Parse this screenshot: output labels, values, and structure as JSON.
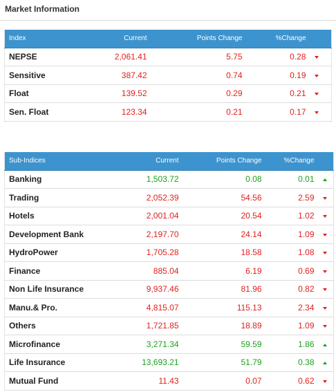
{
  "panel": {
    "title": "Market Information"
  },
  "colors": {
    "header_bg": "#3d93cd",
    "down": "#e0201c",
    "up": "#1da01d"
  },
  "index_table": {
    "columns": [
      "Index",
      "Current",
      "Points Change",
      "%Change"
    ],
    "rows": [
      {
        "name": "NEPSE",
        "current": "2,061.41",
        "points_change": "5.75",
        "pct_change": "0.28",
        "direction": "down"
      },
      {
        "name": "Sensitive",
        "current": "387.42",
        "points_change": "0.74",
        "pct_change": "0.19",
        "direction": "down"
      },
      {
        "name": "Float",
        "current": "139.52",
        "points_change": "0.29",
        "pct_change": "0.21",
        "direction": "down"
      },
      {
        "name": "Sen. Float",
        "current": "123.34",
        "points_change": "0.21",
        "pct_change": "0.17",
        "direction": "down"
      }
    ]
  },
  "subindex_table": {
    "columns": [
      "Sub-Indices",
      "Current",
      "Points Change",
      "%Change"
    ],
    "rows": [
      {
        "name": "Banking",
        "current": "1,503.72",
        "points_change": "0.08",
        "pct_change": "0.01",
        "direction": "up"
      },
      {
        "name": "Trading",
        "current": "2,052.39",
        "points_change": "54.56",
        "pct_change": "2.59",
        "direction": "down"
      },
      {
        "name": "Hotels",
        "current": "2,001.04",
        "points_change": "20.54",
        "pct_change": "1.02",
        "direction": "down"
      },
      {
        "name": "Development Bank",
        "current": "2,197.70",
        "points_change": "24.14",
        "pct_change": "1.09",
        "direction": "down"
      },
      {
        "name": "HydroPower",
        "current": "1,705.28",
        "points_change": "18.58",
        "pct_change": "1.08",
        "direction": "down"
      },
      {
        "name": "Finance",
        "current": "885.04",
        "points_change": "6.19",
        "pct_change": "0.69",
        "direction": "down"
      },
      {
        "name": "Non Life Insurance",
        "current": "9,937.46",
        "points_change": "81.96",
        "pct_change": "0.82",
        "direction": "down"
      },
      {
        "name": "Manu.& Pro.",
        "current": "4,815.07",
        "points_change": "115.13",
        "pct_change": "2.34",
        "direction": "down"
      },
      {
        "name": "Others",
        "current": "1,721.85",
        "points_change": "18.89",
        "pct_change": "1.09",
        "direction": "down"
      },
      {
        "name": "Microfinance",
        "current": "3,271.34",
        "points_change": "59.59",
        "pct_change": "1.86",
        "direction": "up"
      },
      {
        "name": "Life Insurance",
        "current": "13,693.21",
        "points_change": "51.79",
        "pct_change": "0.38",
        "direction": "up"
      },
      {
        "name": "Mutual Fund",
        "current": "11.43",
        "points_change": "0.07",
        "pct_change": "0.62",
        "direction": "down"
      }
    ]
  }
}
